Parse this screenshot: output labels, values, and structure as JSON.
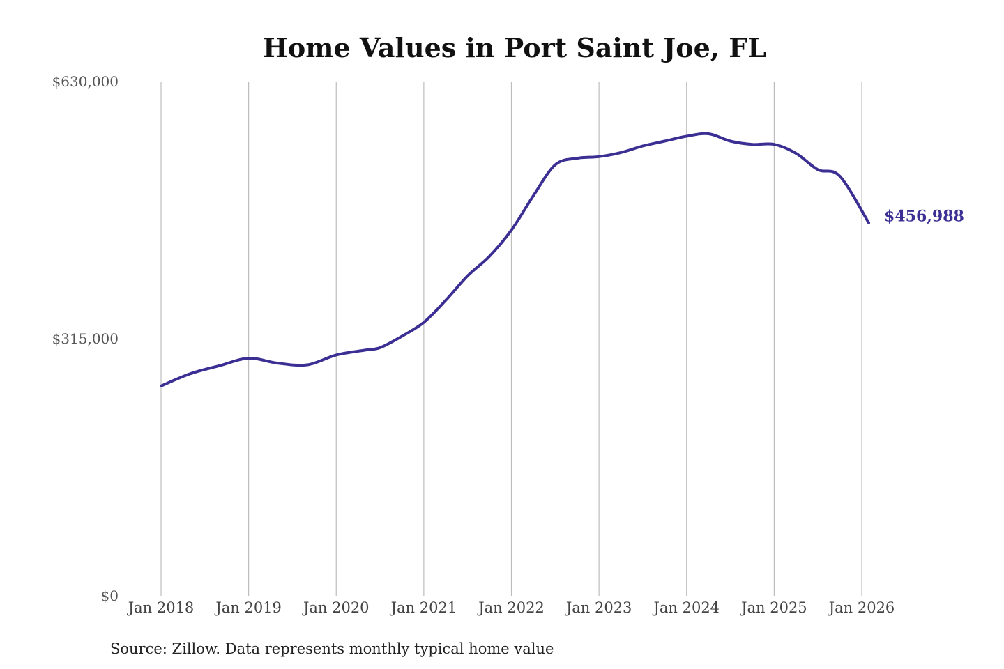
{
  "chart_data": {
    "type": "line",
    "title": "Home Values in Port Saint Joe, FL",
    "source": "Source: Zillow. Data represents monthly typical home value",
    "ylim": [
      0,
      630000
    ],
    "y_ticks": [
      {
        "value": 0,
        "label": "$0"
      },
      {
        "value": 315000,
        "label": "$315,000"
      },
      {
        "value": 630000,
        "label": "$630,000"
      }
    ],
    "x_ticks": [
      {
        "value": 2018,
        "label": "Jan 2018"
      },
      {
        "value": 2019,
        "label": "Jan 2019"
      },
      {
        "value": 2020,
        "label": "Jan 2020"
      },
      {
        "value": 2021,
        "label": "Jan 2021"
      },
      {
        "value": 2022,
        "label": "Jan 2022"
      },
      {
        "value": 2023,
        "label": "Jan 2023"
      },
      {
        "value": 2024,
        "label": "Jan 2024"
      },
      {
        "value": 2025,
        "label": "Jan 2025"
      },
      {
        "value": 2026,
        "label": "Jan 2026"
      }
    ],
    "xlim": [
      2018,
      2026
    ],
    "grid": "vertical",
    "end_label": "$456,988",
    "colors": {
      "line": "#3b2f94"
    },
    "series": [
      {
        "points": [
          [
            2018.0,
            257000
          ],
          [
            2018.33,
            272000
          ],
          [
            2018.67,
            282000
          ],
          [
            2019.0,
            291000
          ],
          [
            2019.33,
            285000
          ],
          [
            2019.67,
            283000
          ],
          [
            2020.0,
            295000
          ],
          [
            2020.33,
            301000
          ],
          [
            2020.5,
            304000
          ],
          [
            2020.75,
            318000
          ],
          [
            2021.0,
            335000
          ],
          [
            2021.25,
            362000
          ],
          [
            2021.5,
            392000
          ],
          [
            2021.75,
            416000
          ],
          [
            2022.0,
            448000
          ],
          [
            2022.25,
            490000
          ],
          [
            2022.5,
            528000
          ],
          [
            2022.75,
            536000
          ],
          [
            2023.0,
            538000
          ],
          [
            2023.25,
            543000
          ],
          [
            2023.5,
            551000
          ],
          [
            2023.75,
            557000
          ],
          [
            2024.0,
            563000
          ],
          [
            2024.25,
            566000
          ],
          [
            2024.5,
            557000
          ],
          [
            2024.75,
            553000
          ],
          [
            2025.0,
            553000
          ],
          [
            2025.25,
            542000
          ],
          [
            2025.5,
            522000
          ],
          [
            2025.75,
            514000
          ],
          [
            2026.08,
            456988
          ]
        ]
      }
    ]
  }
}
